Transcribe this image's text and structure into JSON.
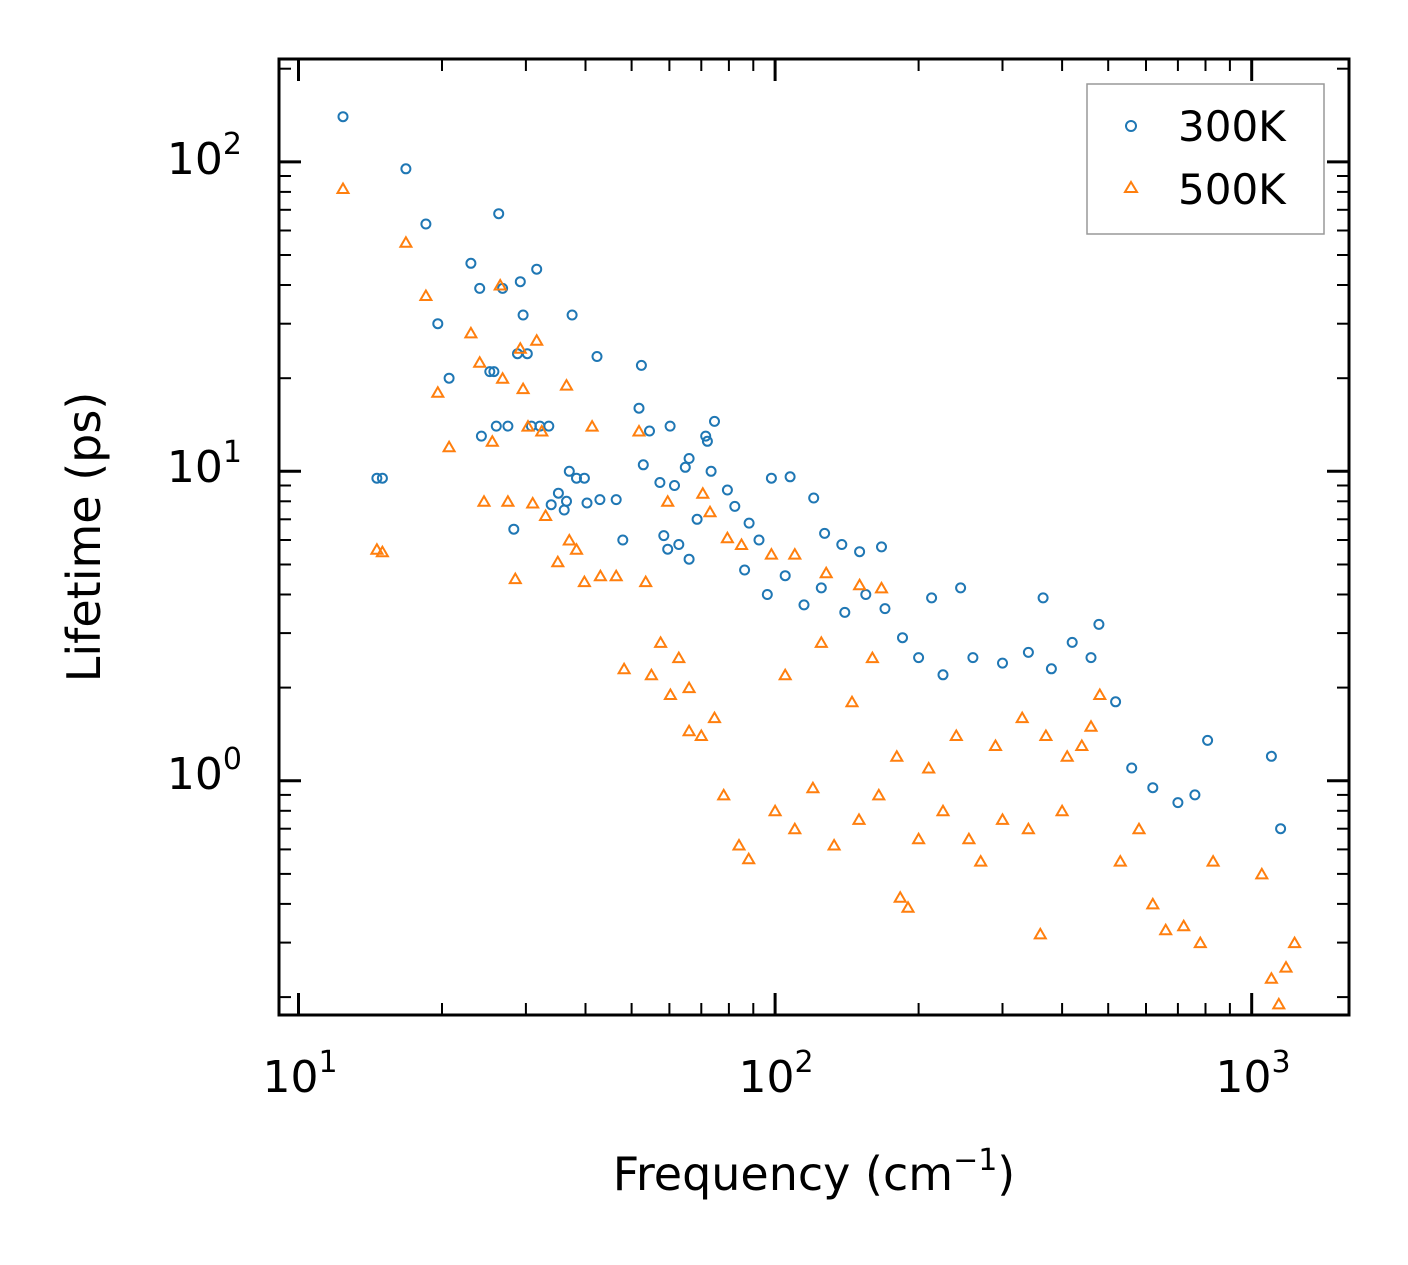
{
  "chart_data": {
    "type": "scatter",
    "xlabel": "Frequency (cm",
    "xlabel_sup": "−1",
    "xlabel_end": ")",
    "ylabel": "Lifetime (ps)",
    "xscale": "log",
    "yscale": "log",
    "xlim": [
      9.1,
      1600
    ],
    "ylim": [
      0.175,
      215
    ],
    "xticks": [
      {
        "base": "10",
        "exp": "1",
        "value": 10
      },
      {
        "base": "10",
        "exp": "2",
        "value": 100
      },
      {
        "base": "10",
        "exp": "3",
        "value": 1000
      }
    ],
    "yticks": [
      {
        "base": "10",
        "exp": "0",
        "value": 1
      },
      {
        "base": "10",
        "exp": "1",
        "value": 10
      },
      {
        "base": "10",
        "exp": "2",
        "value": 100
      }
    ],
    "legend_position": "top-right",
    "series": [
      {
        "name": "300K",
        "color": "#1f77b4",
        "marker": "circle-open",
        "points": [
          [
            12.4,
            140
          ],
          [
            14.6,
            9.5
          ],
          [
            15.0,
            9.5
          ],
          [
            16.8,
            95
          ],
          [
            18.5,
            63
          ],
          [
            19.6,
            30
          ],
          [
            20.7,
            20
          ],
          [
            23.0,
            47
          ],
          [
            24.0,
            39
          ],
          [
            24.2,
            13
          ],
          [
            25.2,
            21
          ],
          [
            25.7,
            21
          ],
          [
            26.0,
            14
          ],
          [
            26.3,
            68
          ],
          [
            26.8,
            39
          ],
          [
            27.5,
            14
          ],
          [
            28.3,
            6.5
          ],
          [
            28.8,
            24
          ],
          [
            29.2,
            41
          ],
          [
            29.6,
            32
          ],
          [
            30.2,
            24
          ],
          [
            30.8,
            14
          ],
          [
            31.6,
            45
          ],
          [
            32.1,
            14
          ],
          [
            33.5,
            14
          ],
          [
            33.9,
            7.8
          ],
          [
            35.1,
            8.5
          ],
          [
            36.1,
            7.5
          ],
          [
            36.5,
            8.0
          ],
          [
            37.0,
            10
          ],
          [
            37.5,
            32
          ],
          [
            38.3,
            9.5
          ],
          [
            39.8,
            9.5
          ],
          [
            40.3,
            7.9
          ],
          [
            42.3,
            23.5
          ],
          [
            42.9,
            8.1
          ],
          [
            46.4,
            8.1
          ],
          [
            47.9,
            6.0
          ],
          [
            51.8,
            16
          ],
          [
            52.4,
            22
          ],
          [
            52.9,
            10.5
          ],
          [
            54.5,
            13.5
          ],
          [
            57.3,
            9.2
          ],
          [
            58.4,
            6.2
          ],
          [
            60.2,
            14
          ],
          [
            61.5,
            9.0
          ],
          [
            62.8,
            5.8
          ],
          [
            64.8,
            10.3
          ],
          [
            66.0,
            11
          ],
          [
            68.6,
            7.0
          ],
          [
            71.5,
            13
          ],
          [
            72.1,
            12.5
          ],
          [
            73.4,
            10
          ],
          [
            74.6,
            14.5
          ],
          [
            79.4,
            8.7
          ],
          [
            82.3,
            7.7
          ],
          [
            88.2,
            6.8
          ],
          [
            92.5,
            6.0
          ],
          [
            98.2,
            9.5
          ],
          [
            107.5,
            9.6
          ],
          [
            120.5,
            8.2
          ],
          [
            127.0,
            6.3
          ],
          [
            138.0,
            5.8
          ],
          [
            150.4,
            5.5
          ],
          [
            167.2,
            5.7
          ],
          [
            213.0,
            3.9
          ],
          [
            245.0,
            4.2
          ],
          [
            365.0,
            3.9
          ],
          [
            478.0,
            3.2
          ],
          [
            518.0,
            1.8
          ],
          [
            808.0,
            1.35
          ],
          [
            1100.0,
            1.2
          ],
          [
            59.5,
            5.6
          ],
          [
            66.0,
            5.2
          ],
          [
            86.3,
            4.8
          ],
          [
            96.3,
            4.0
          ],
          [
            105.0,
            4.6
          ],
          [
            115.0,
            3.7
          ],
          [
            125.0,
            4.2
          ],
          [
            140.0,
            3.5
          ],
          [
            155.0,
            4.0
          ],
          [
            170.0,
            3.6
          ],
          [
            185.0,
            2.9
          ],
          [
            200.0,
            2.5
          ],
          [
            225.0,
            2.2
          ],
          [
            260.0,
            2.5
          ],
          [
            300.0,
            2.4
          ],
          [
            340.0,
            2.6
          ],
          [
            380.0,
            2.3
          ],
          [
            420.0,
            2.8
          ],
          [
            460.0,
            2.5
          ],
          [
            560.0,
            1.1
          ],
          [
            620.0,
            0.95
          ],
          [
            700.0,
            0.85
          ],
          [
            760.0,
            0.9
          ],
          [
            1150.0,
            0.7
          ]
        ]
      },
      {
        "name": "500K",
        "color": "#ff7f0e",
        "marker": "triangle-open",
        "points": [
          [
            12.4,
            82
          ],
          [
            14.6,
            5.6
          ],
          [
            15.0,
            5.5
          ],
          [
            16.8,
            55
          ],
          [
            18.5,
            37
          ],
          [
            19.6,
            18
          ],
          [
            20.7,
            12
          ],
          [
            23.0,
            28
          ],
          [
            24.0,
            22.5
          ],
          [
            24.5,
            8.0
          ],
          [
            25.5,
            12.5
          ],
          [
            26.5,
            40
          ],
          [
            26.8,
            20
          ],
          [
            27.5,
            8.0
          ],
          [
            28.5,
            4.5
          ],
          [
            29.2,
            25
          ],
          [
            29.6,
            18.5
          ],
          [
            30.3,
            14
          ],
          [
            31.0,
            7.9
          ],
          [
            31.6,
            26.5
          ],
          [
            32.4,
            13.5
          ],
          [
            33.0,
            7.2
          ],
          [
            35.0,
            5.1
          ],
          [
            36.5,
            19
          ],
          [
            37.0,
            6.0
          ],
          [
            38.3,
            5.6
          ],
          [
            39.8,
            4.4
          ],
          [
            41.3,
            14
          ],
          [
            43.0,
            4.6
          ],
          [
            46.4,
            4.6
          ],
          [
            51.8,
            13.5
          ],
          [
            53.5,
            4.4
          ],
          [
            57.5,
            2.8
          ],
          [
            59.5,
            8.0
          ],
          [
            62.8,
            2.5
          ],
          [
            66.0,
            2.0
          ],
          [
            70.5,
            8.5
          ],
          [
            73.0,
            7.4
          ],
          [
            79.4,
            6.1
          ],
          [
            85.0,
            5.8
          ],
          [
            98.2,
            5.4
          ],
          [
            110.0,
            5.4
          ],
          [
            128.0,
            4.7
          ],
          [
            150.4,
            4.3
          ],
          [
            167.2,
            4.2
          ],
          [
            48.2,
            2.3
          ],
          [
            55.0,
            2.2
          ],
          [
            60.3,
            1.9
          ],
          [
            66.0,
            1.45
          ],
          [
            70.0,
            1.4
          ],
          [
            74.6,
            1.6
          ],
          [
            78.0,
            0.9
          ],
          [
            84.0,
            0.62
          ],
          [
            88.0,
            0.56
          ],
          [
            100.0,
            0.8
          ],
          [
            110.0,
            0.7
          ],
          [
            120.0,
            0.95
          ],
          [
            133.0,
            0.62
          ],
          [
            150.0,
            0.75
          ],
          [
            165.0,
            0.9
          ],
          [
            183.0,
            0.42
          ],
          [
            190.0,
            0.39
          ],
          [
            200.0,
            0.65
          ],
          [
            225.0,
            0.8
          ],
          [
            255.0,
            0.65
          ],
          [
            270.0,
            0.55
          ],
          [
            300.0,
            0.75
          ],
          [
            340.0,
            0.7
          ],
          [
            360.0,
            0.32
          ],
          [
            400.0,
            0.8
          ],
          [
            440.0,
            1.3
          ],
          [
            480.0,
            1.9
          ],
          [
            530.0,
            0.55
          ],
          [
            580.0,
            0.7
          ],
          [
            620.0,
            0.4
          ],
          [
            660.0,
            0.33
          ],
          [
            720.0,
            0.34
          ],
          [
            780.0,
            0.3
          ],
          [
            830.0,
            0.55
          ],
          [
            1050.0,
            0.5
          ],
          [
            1100.0,
            0.23
          ],
          [
            1140.0,
            0.19
          ],
          [
            1180.0,
            0.25
          ],
          [
            1230.0,
            0.3
          ],
          [
            105.0,
            2.2
          ],
          [
            125.0,
            2.8
          ],
          [
            145.0,
            1.8
          ],
          [
            160.0,
            2.5
          ],
          [
            180.0,
            1.2
          ],
          [
            210.0,
            1.1
          ],
          [
            240.0,
            1.4
          ],
          [
            290.0,
            1.3
          ],
          [
            330.0,
            1.6
          ],
          [
            370.0,
            1.4
          ],
          [
            410.0,
            1.2
          ],
          [
            460.0,
            1.5
          ]
        ]
      }
    ]
  }
}
